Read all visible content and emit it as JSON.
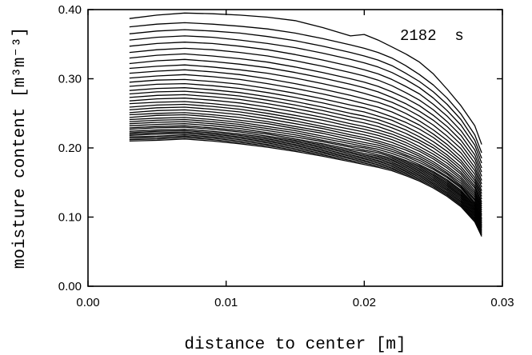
{
  "chart_data": {
    "type": "line",
    "title": "",
    "xlabel": "distance to center [m]",
    "ylabel": "moisture content [m³m⁻³]",
    "xlim": [
      0,
      0.03
    ],
    "ylim": [
      0,
      0.4
    ],
    "xticks": [
      "0.00",
      "0.01",
      "0.02",
      "0.03"
    ],
    "yticks": [
      "0.00",
      "0.10",
      "0.20",
      "0.30",
      "0.40"
    ],
    "grid": false,
    "legend": "none",
    "annotation": "2182  s",
    "x": [
      0.003,
      0.005,
      0.007,
      0.009,
      0.011,
      0.013,
      0.015,
      0.017,
      0.019,
      0.02,
      0.021,
      0.022,
      0.023,
      0.024,
      0.025,
      0.026,
      0.027,
      0.028,
      0.0285
    ],
    "series": [
      {
        "values": [
          0.387,
          0.392,
          0.395,
          0.394,
          0.392,
          0.389,
          0.384,
          0.374,
          0.362,
          0.364,
          0.356,
          0.346,
          0.336,
          0.324,
          0.307,
          0.285,
          0.261,
          0.232,
          0.205
        ]
      },
      {
        "values": [
          0.375,
          0.379,
          0.381,
          0.379,
          0.376,
          0.372,
          0.366,
          0.358,
          0.349,
          0.344,
          0.338,
          0.33,
          0.319,
          0.306,
          0.291,
          0.272,
          0.249,
          0.219,
          0.193
        ]
      },
      {
        "values": [
          0.365,
          0.369,
          0.371,
          0.369,
          0.366,
          0.361,
          0.355,
          0.347,
          0.338,
          0.333,
          0.327,
          0.319,
          0.308,
          0.296,
          0.281,
          0.263,
          0.241,
          0.211,
          0.185
        ]
      },
      {
        "values": [
          0.356,
          0.36,
          0.362,
          0.36,
          0.356,
          0.351,
          0.345,
          0.337,
          0.328,
          0.323,
          0.317,
          0.309,
          0.299,
          0.287,
          0.272,
          0.254,
          0.233,
          0.204,
          0.178
        ]
      },
      {
        "values": [
          0.347,
          0.351,
          0.353,
          0.351,
          0.347,
          0.342,
          0.335,
          0.327,
          0.318,
          0.313,
          0.307,
          0.299,
          0.289,
          0.278,
          0.263,
          0.246,
          0.225,
          0.197,
          0.171
        ]
      },
      {
        "values": [
          0.338,
          0.342,
          0.344,
          0.342,
          0.338,
          0.333,
          0.326,
          0.318,
          0.309,
          0.304,
          0.298,
          0.29,
          0.28,
          0.269,
          0.255,
          0.238,
          0.218,
          0.19,
          0.165
        ]
      },
      {
        "values": [
          0.33,
          0.334,
          0.336,
          0.333,
          0.329,
          0.324,
          0.317,
          0.309,
          0.3,
          0.295,
          0.289,
          0.281,
          0.272,
          0.261,
          0.247,
          0.231,
          0.211,
          0.184,
          0.159
        ]
      },
      {
        "values": [
          0.322,
          0.326,
          0.328,
          0.325,
          0.321,
          0.316,
          0.309,
          0.301,
          0.292,
          0.287,
          0.281,
          0.273,
          0.264,
          0.253,
          0.24,
          0.224,
          0.205,
          0.178,
          0.153
        ]
      },
      {
        "values": [
          0.315,
          0.318,
          0.32,
          0.317,
          0.313,
          0.308,
          0.301,
          0.293,
          0.284,
          0.279,
          0.273,
          0.266,
          0.257,
          0.246,
          0.233,
          0.217,
          0.199,
          0.172,
          0.148
        ]
      },
      {
        "values": [
          0.308,
          0.311,
          0.313,
          0.31,
          0.306,
          0.3,
          0.293,
          0.285,
          0.276,
          0.271,
          0.266,
          0.259,
          0.25,
          0.239,
          0.226,
          0.211,
          0.193,
          0.167,
          0.143
        ]
      },
      {
        "values": [
          0.301,
          0.304,
          0.306,
          0.303,
          0.299,
          0.293,
          0.286,
          0.278,
          0.269,
          0.264,
          0.259,
          0.252,
          0.243,
          0.233,
          0.22,
          0.205,
          0.187,
          0.162,
          0.138
        ]
      },
      {
        "values": [
          0.295,
          0.298,
          0.299,
          0.296,
          0.292,
          0.286,
          0.279,
          0.271,
          0.262,
          0.258,
          0.252,
          0.245,
          0.237,
          0.227,
          0.215,
          0.2,
          0.182,
          0.157,
          0.134
        ]
      },
      {
        "values": [
          0.289,
          0.292,
          0.293,
          0.29,
          0.286,
          0.28,
          0.273,
          0.265,
          0.256,
          0.252,
          0.246,
          0.24,
          0.231,
          0.221,
          0.209,
          0.195,
          0.178,
          0.153,
          0.13
        ]
      },
      {
        "values": [
          0.283,
          0.286,
          0.287,
          0.284,
          0.28,
          0.274,
          0.267,
          0.259,
          0.25,
          0.246,
          0.241,
          0.234,
          0.226,
          0.216,
          0.204,
          0.19,
          0.173,
          0.149,
          0.126
        ]
      },
      {
        "values": [
          0.278,
          0.281,
          0.282,
          0.279,
          0.275,
          0.269,
          0.262,
          0.254,
          0.245,
          0.241,
          0.236,
          0.229,
          0.221,
          0.211,
          0.2,
          0.186,
          0.169,
          0.145,
          0.122
        ]
      },
      {
        "values": [
          0.273,
          0.276,
          0.277,
          0.274,
          0.27,
          0.264,
          0.257,
          0.249,
          0.24,
          0.236,
          0.231,
          0.224,
          0.216,
          0.207,
          0.195,
          0.182,
          0.165,
          0.142,
          0.119
        ]
      },
      {
        "values": [
          0.268,
          0.271,
          0.272,
          0.269,
          0.265,
          0.259,
          0.252,
          0.244,
          0.235,
          0.231,
          0.226,
          0.22,
          0.212,
          0.202,
          0.191,
          0.178,
          0.162,
          0.138,
          0.116
        ]
      },
      {
        "values": [
          0.264,
          0.266,
          0.267,
          0.264,
          0.26,
          0.254,
          0.247,
          0.24,
          0.231,
          0.227,
          0.222,
          0.216,
          0.208,
          0.198,
          0.187,
          0.174,
          0.158,
          0.135,
          0.113
        ]
      },
      {
        "values": [
          0.259,
          0.262,
          0.263,
          0.26,
          0.256,
          0.25,
          0.243,
          0.235,
          0.227,
          0.223,
          0.218,
          0.212,
          0.204,
          0.195,
          0.184,
          0.171,
          0.155,
          0.132,
          0.11
        ]
      },
      {
        "values": [
          0.255,
          0.258,
          0.259,
          0.256,
          0.252,
          0.246,
          0.239,
          0.231,
          0.223,
          0.219,
          0.214,
          0.208,
          0.2,
          0.191,
          0.18,
          0.167,
          0.152,
          0.129,
          0.107
        ]
      },
      {
        "values": [
          0.251,
          0.254,
          0.255,
          0.252,
          0.248,
          0.242,
          0.235,
          0.228,
          0.219,
          0.215,
          0.21,
          0.204,
          0.197,
          0.188,
          0.177,
          0.164,
          0.149,
          0.126,
          0.104
        ]
      },
      {
        "values": [
          0.248,
          0.25,
          0.251,
          0.248,
          0.244,
          0.238,
          0.231,
          0.224,
          0.216,
          0.212,
          0.207,
          0.201,
          0.193,
          0.185,
          0.174,
          0.162,
          0.146,
          0.124,
          0.102
        ]
      },
      {
        "values": [
          0.244,
          0.247,
          0.248,
          0.245,
          0.24,
          0.235,
          0.228,
          0.221,
          0.212,
          0.208,
          0.204,
          0.198,
          0.19,
          0.182,
          0.171,
          0.159,
          0.144,
          0.121,
          0.099
        ]
      },
      {
        "values": [
          0.241,
          0.243,
          0.244,
          0.241,
          0.237,
          0.231,
          0.225,
          0.217,
          0.209,
          0.205,
          0.201,
          0.195,
          0.188,
          0.179,
          0.169,
          0.157,
          0.142,
          0.119,
          0.097
        ]
      },
      {
        "values": [
          0.238,
          0.24,
          0.241,
          0.238,
          0.234,
          0.228,
          0.222,
          0.214,
          0.206,
          0.202,
          0.198,
          0.192,
          0.185,
          0.176,
          0.166,
          0.154,
          0.139,
          0.117,
          0.095
        ]
      },
      {
        "values": [
          0.235,
          0.237,
          0.238,
          0.235,
          0.231,
          0.225,
          0.219,
          0.211,
          0.203,
          0.2,
          0.195,
          0.189,
          0.182,
          0.174,
          0.164,
          0.152,
          0.137,
          0.115,
          0.093
        ]
      },
      {
        "values": [
          0.232,
          0.234,
          0.235,
          0.232,
          0.228,
          0.222,
          0.216,
          0.209,
          0.201,
          0.197,
          0.193,
          0.187,
          0.18,
          0.172,
          0.162,
          0.15,
          0.135,
          0.113,
          0.091
        ]
      },
      {
        "values": [
          0.229,
          0.231,
          0.232,
          0.229,
          0.225,
          0.22,
          0.213,
          0.206,
          0.198,
          0.195,
          0.19,
          0.185,
          0.178,
          0.17,
          0.16,
          0.148,
          0.133,
          0.111,
          0.089
        ]
      },
      {
        "values": [
          0.227,
          0.229,
          0.23,
          0.227,
          0.223,
          0.217,
          0.211,
          0.204,
          0.196,
          0.192,
          0.188,
          0.183,
          0.176,
          0.168,
          0.158,
          0.146,
          0.131,
          0.109,
          0.087
        ]
      },
      {
        "values": [
          0.224,
          0.226,
          0.227,
          0.224,
          0.22,
          0.215,
          0.209,
          0.202,
          0.194,
          0.19,
          0.186,
          0.181,
          0.174,
          0.166,
          0.156,
          0.144,
          0.129,
          0.107,
          0.086
        ]
      },
      {
        "values": [
          0.222,
          0.224,
          0.225,
          0.222,
          0.218,
          0.213,
          0.207,
          0.2,
          0.192,
          0.188,
          0.184,
          0.179,
          0.172,
          0.164,
          0.154,
          0.142,
          0.127,
          0.105,
          0.084
        ]
      },
      {
        "values": [
          0.22,
          0.222,
          0.223,
          0.22,
          0.216,
          0.211,
          0.205,
          0.198,
          0.19,
          0.186,
          0.182,
          0.177,
          0.17,
          0.162,
          0.152,
          0.14,
          0.125,
          0.103,
          0.082
        ]
      },
      {
        "values": [
          0.218,
          0.22,
          0.221,
          0.218,
          0.214,
          0.209,
          0.203,
          0.196,
          0.188,
          0.184,
          0.18,
          0.175,
          0.168,
          0.16,
          0.15,
          0.138,
          0.123,
          0.101,
          0.08
        ]
      },
      {
        "values": [
          0.216,
          0.217,
          0.219,
          0.216,
          0.212,
          0.207,
          0.201,
          0.194,
          0.186,
          0.182,
          0.178,
          0.173,
          0.166,
          0.158,
          0.148,
          0.136,
          0.121,
          0.099,
          0.078
        ]
      },
      {
        "values": [
          0.214,
          0.215,
          0.217,
          0.214,
          0.21,
          0.205,
          0.199,
          0.192,
          0.184,
          0.18,
          0.176,
          0.171,
          0.164,
          0.156,
          0.146,
          0.134,
          0.119,
          0.097,
          0.076
        ]
      },
      {
        "values": [
          0.212,
          0.213,
          0.215,
          0.212,
          0.208,
          0.203,
          0.197,
          0.19,
          0.182,
          0.178,
          0.174,
          0.169,
          0.162,
          0.154,
          0.144,
          0.132,
          0.117,
          0.095,
          0.074
        ]
      },
      {
        "values": [
          0.21,
          0.211,
          0.213,
          0.21,
          0.206,
          0.201,
          0.195,
          0.188,
          0.18,
          0.176,
          0.172,
          0.167,
          0.16,
          0.152,
          0.142,
          0.13,
          0.115,
          0.093,
          0.072
        ]
      }
    ]
  }
}
